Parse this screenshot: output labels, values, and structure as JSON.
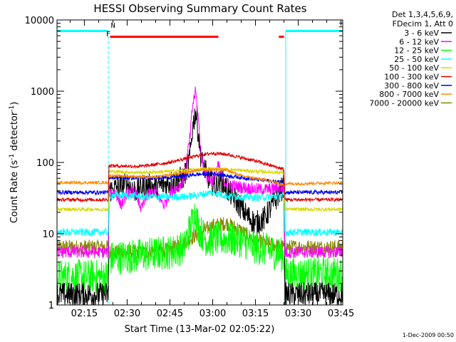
{
  "chart_data": {
    "type": "line",
    "title": "HESSI Observing Summary Count Rates",
    "xlabel": "Start Time (13-Mar-02 02:05:22)",
    "ylabel_prefix": "Count Rate (s",
    "ylabel_sup1": "-1",
    "ylabel_mid": " detector",
    "ylabel_sup2": "-1",
    "ylabel_suffix": ")",
    "y_scale": "log",
    "ylim": [
      1,
      10000
    ],
    "xlim_min": [
      5.4,
      105.6
    ],
    "x_ticks": [
      {
        "label": "02:15",
        "min": 15
      },
      {
        "label": "02:30",
        "min": 30
      },
      {
        "label": "02:45",
        "min": 45
      },
      {
        "label": "03:00",
        "min": 60
      },
      {
        "label": "03:15",
        "min": 75
      },
      {
        "label": "03:30",
        "min": 90
      },
      {
        "label": "03:45",
        "min": 105
      }
    ],
    "y_ticks": [
      {
        "label": "1",
        "value": 1
      },
      {
        "label": "10",
        "value": 10
      },
      {
        "label": "100",
        "value": 100
      },
      {
        "label": "1000",
        "value": 1000
      },
      {
        "label": "10000",
        "value": 10000
      }
    ],
    "legend": {
      "placement": "right",
      "header": [
        "Det 1,3,4,5,6,9,",
        "FDecim 1, Att 0"
      ],
      "entries": [
        {
          "label": "3 - 6 keV",
          "color": "#000000"
        },
        {
          "label": "6 - 12 keV",
          "color": "#ff00ff"
        },
        {
          "label": "12 - 25 keV",
          "color": "#00ff00"
        },
        {
          "label": "25 - 50 keV",
          "color": "#00ffff"
        },
        {
          "label": "50 - 100 keV",
          "color": "#d8d800"
        },
        {
          "label": "100 - 300 keV",
          "color": "#dd0000"
        },
        {
          "label": "300 - 800 keV",
          "color": "#0000ee"
        },
        {
          "label": "800 - 7000 keV",
          "color": "#ff8800"
        },
        {
          "label": "7000 - 20000 keV",
          "color": "#888800"
        }
      ]
    },
    "series": [
      {
        "color": "#000000",
        "noise": 0.5,
        "points": [
          [
            5.4,
            1.4
          ],
          [
            23.4,
            1.4
          ],
          [
            23.6,
            40
          ],
          [
            30,
            50
          ],
          [
            33,
            40
          ],
          [
            36,
            48
          ],
          [
            40,
            45
          ],
          [
            45,
            52
          ],
          [
            50,
            62
          ],
          [
            52,
            120
          ],
          [
            53,
            320
          ],
          [
            54,
            520
          ],
          [
            55,
            250
          ],
          [
            56,
            110
          ],
          [
            58,
            65
          ],
          [
            61,
            45
          ],
          [
            63,
            58
          ],
          [
            65,
            42
          ],
          [
            68,
            30
          ],
          [
            72,
            18
          ],
          [
            75,
            14
          ],
          [
            78,
            16
          ],
          [
            82,
            30
          ],
          [
            85,
            48
          ],
          [
            85.3,
            1.4
          ],
          [
            105.6,
            1.4
          ]
        ]
      },
      {
        "color": "#ff00ff",
        "noise": 0.25,
        "points": [
          [
            5.4,
            5.5
          ],
          [
            23.4,
            5.5
          ],
          [
            23.6,
            40
          ],
          [
            26,
            38
          ],
          [
            28,
            25
          ],
          [
            30,
            38
          ],
          [
            33,
            38
          ],
          [
            35,
            22
          ],
          [
            37,
            35
          ],
          [
            40,
            40
          ],
          [
            43,
            25
          ],
          [
            45,
            38
          ],
          [
            48,
            45
          ],
          [
            50,
            60
          ],
          [
            52,
            220
          ],
          [
            53,
            650
          ],
          [
            54,
            1000
          ],
          [
            55,
            400
          ],
          [
            56,
            120
          ],
          [
            58,
            60
          ],
          [
            60,
            55
          ],
          [
            62,
            90
          ],
          [
            64,
            55
          ],
          [
            66,
            48
          ],
          [
            70,
            45
          ],
          [
            75,
            42
          ],
          [
            80,
            42
          ],
          [
            85,
            44
          ],
          [
            85.3,
            5.5
          ],
          [
            105.6,
            5.5
          ]
        ]
      },
      {
        "color": "#00ff00",
        "noise": 0.7,
        "points": [
          [
            5.4,
            2.5
          ],
          [
            23.4,
            2.5
          ],
          [
            23.6,
            4.5
          ],
          [
            35,
            5
          ],
          [
            45,
            5.5
          ],
          [
            50,
            6.5
          ],
          [
            53,
            16
          ],
          [
            54,
            21
          ],
          [
            55,
            12
          ],
          [
            58,
            8
          ],
          [
            62,
            8.5
          ],
          [
            70,
            8
          ],
          [
            75,
            6.5
          ],
          [
            85,
            5
          ],
          [
            85.3,
            2.7
          ],
          [
            105.6,
            2.7
          ]
        ]
      },
      {
        "color": "#00ffff",
        "noise": 0.15,
        "points": [
          [
            5.4,
            10.5
          ],
          [
            23.4,
            10.5
          ],
          [
            23.6,
            35
          ],
          [
            40,
            33
          ],
          [
            50,
            33
          ],
          [
            55,
            35
          ],
          [
            60,
            38
          ],
          [
            65,
            34
          ],
          [
            75,
            32
          ],
          [
            85,
            34
          ],
          [
            85.3,
            10.5
          ],
          [
            105.6,
            10.5
          ]
        ]
      },
      {
        "color": "#d8d800",
        "noise": 0.07,
        "points": [
          [
            5.4,
            22
          ],
          [
            23.4,
            22
          ],
          [
            23.6,
            75
          ],
          [
            35,
            72
          ],
          [
            45,
            75
          ],
          [
            55,
            80
          ],
          [
            60,
            82
          ],
          [
            65,
            80
          ],
          [
            75,
            75
          ],
          [
            85,
            72
          ],
          [
            85.3,
            22
          ],
          [
            105.6,
            22
          ]
        ]
      },
      {
        "color": "#dd0000",
        "noise": 0.07,
        "points": [
          [
            5.4,
            30
          ],
          [
            23.4,
            30
          ],
          [
            23.6,
            90
          ],
          [
            35,
            88
          ],
          [
            45,
            100
          ],
          [
            55,
            125
          ],
          [
            60,
            135
          ],
          [
            65,
            130
          ],
          [
            75,
            105
          ],
          [
            85,
            80
          ],
          [
            85.3,
            30
          ],
          [
            105.6,
            30
          ]
        ]
      },
      {
        "color": "#0000ee",
        "noise": 0.08,
        "points": [
          [
            5.4,
            38
          ],
          [
            23.4,
            38
          ],
          [
            23.6,
            62
          ],
          [
            35,
            60
          ],
          [
            45,
            62
          ],
          [
            55,
            68
          ],
          [
            60,
            70
          ],
          [
            65,
            65
          ],
          [
            75,
            58
          ],
          [
            85,
            52
          ],
          [
            85.3,
            38
          ],
          [
            105.6,
            38
          ]
        ]
      },
      {
        "color": "#ff8800",
        "noise": 0.06,
        "points": [
          [
            5.4,
            52
          ],
          [
            23.4,
            52
          ],
          [
            23.6,
            65
          ],
          [
            40,
            62
          ],
          [
            50,
            72
          ],
          [
            55,
            78
          ],
          [
            60,
            80
          ],
          [
            65,
            78
          ],
          [
            70,
            65
          ],
          [
            80,
            55
          ],
          [
            85,
            48
          ],
          [
            85.3,
            50
          ],
          [
            105.6,
            52
          ]
        ]
      },
      {
        "color": "#888800",
        "noise": 0.3,
        "points": [
          [
            5.4,
            6.5
          ],
          [
            23.4,
            6.5
          ],
          [
            23.6,
            5.5
          ],
          [
            35,
            5.5
          ],
          [
            45,
            6
          ],
          [
            50,
            7.5
          ],
          [
            55,
            10
          ],
          [
            60,
            13
          ],
          [
            65,
            14
          ],
          [
            70,
            11
          ],
          [
            75,
            8
          ],
          [
            85,
            6.5
          ],
          [
            85.3,
            6.5
          ],
          [
            105.6,
            6.5
          ]
        ]
      }
    ],
    "saa_bars": [
      {
        "min": [
          5.4,
          23.4
        ],
        "value": 7000
      },
      {
        "min": [
          85.6,
          105.6
        ],
        "value": 7000
      }
    ],
    "night_lines_min": [
      5.4,
      23.4,
      85.6,
      105.6
    ],
    "flare_bars": [
      {
        "min": [
          24,
          62
        ],
        "value": 5800
      },
      {
        "min": [
          83.2,
          85
        ],
        "value": 5800
      }
    ],
    "flag_letters": [
      {
        "text": "F",
        "min": 22.6,
        "value": 5900,
        "color": "#ff0000"
      },
      {
        "text": "N",
        "min": 24.3,
        "value": 7800,
        "color": "#00ffff"
      }
    ],
    "timestamp": "1-Dec-2009 00:50"
  }
}
